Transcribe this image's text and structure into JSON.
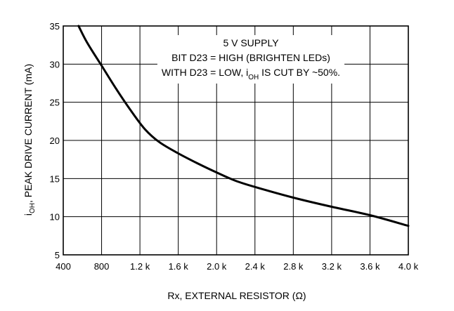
{
  "chart_data": {
    "type": "line",
    "xlabel_prefix": "Rx, EXTERNAL RESISTOR (",
    "xlabel_unit": "Ω",
    "xlabel_suffix": ")",
    "ylabel_prefix": "i",
    "ylabel_sub": "OH",
    "ylabel_rest": ", PEAK DRIVE CURRENT (mA)",
    "xlim": [
      400,
      4000
    ],
    "ylim": [
      5,
      35
    ],
    "x_ticks": [
      {
        "value": 400,
        "label": "400"
      },
      {
        "value": 800,
        "label": "800"
      },
      {
        "value": 1200,
        "label": "1.2 k"
      },
      {
        "value": 1600,
        "label": "1.6 k"
      },
      {
        "value": 2000,
        "label": "2.0 k"
      },
      {
        "value": 2400,
        "label": "2.4 k"
      },
      {
        "value": 2800,
        "label": "2.8 k"
      },
      {
        "value": 3200,
        "label": "3.2 k"
      },
      {
        "value": 3600,
        "label": "3.6 k"
      },
      {
        "value": 4000,
        "label": "4.0 k"
      }
    ],
    "y_ticks": [
      {
        "value": 5,
        "label": "5"
      },
      {
        "value": 10,
        "label": "10"
      },
      {
        "value": 15,
        "label": "15"
      },
      {
        "value": 20,
        "label": "20"
      },
      {
        "value": 25,
        "label": "25"
      },
      {
        "value": 30,
        "label": "30"
      },
      {
        "value": 35,
        "label": "35"
      }
    ],
    "grid": true,
    "series": [
      {
        "x": [
          560,
          650,
          800,
          950,
          1100,
          1250,
          1400,
          1600,
          1800,
          2000,
          2200,
          2400,
          2800,
          3200,
          3600,
          4000
        ],
        "y": [
          35,
          32.8,
          29.8,
          26.8,
          24.0,
          21.5,
          19.8,
          18.3,
          17.0,
          15.8,
          14.7,
          13.9,
          12.5,
          11.3,
          10.2,
          8.8
        ]
      }
    ],
    "annotations": {
      "line1": "5 V SUPPLY",
      "line2": "BIT D23 = HIGH (BRIGHTEN LEDs)",
      "line3_prefix": "WITH D23 = LOW, i",
      "line3_sub": "OH",
      "line3_suffix": " IS CUT BY ~50%."
    }
  }
}
